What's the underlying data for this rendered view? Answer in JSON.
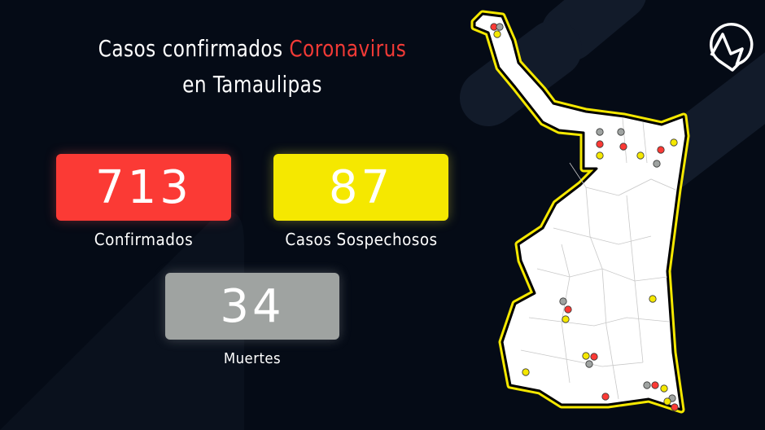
{
  "title": {
    "line1_prefix": "Casos confirmados",
    "line1_accent": "Coronavirus",
    "line2": "en Tamaulipas"
  },
  "stats": [
    {
      "value": "713",
      "label": "Confirmados",
      "color": "#fb3a35"
    },
    {
      "value": "87",
      "label": "Casos Sospechosos",
      "color": "#f5e800"
    },
    {
      "value": "34",
      "label": "Muertes",
      "color": "#9fa3a1"
    }
  ],
  "colors": {
    "background": "#050b16",
    "accent": "#f23a36",
    "map_border": "#f5e800",
    "map_fill": "#ffffff"
  },
  "logo": {
    "icon": "n-arrow-logo-icon"
  },
  "map": {
    "region": "Tamaulipas",
    "marker_types": [
      "confirmed",
      "suspected",
      "deaths"
    ]
  }
}
